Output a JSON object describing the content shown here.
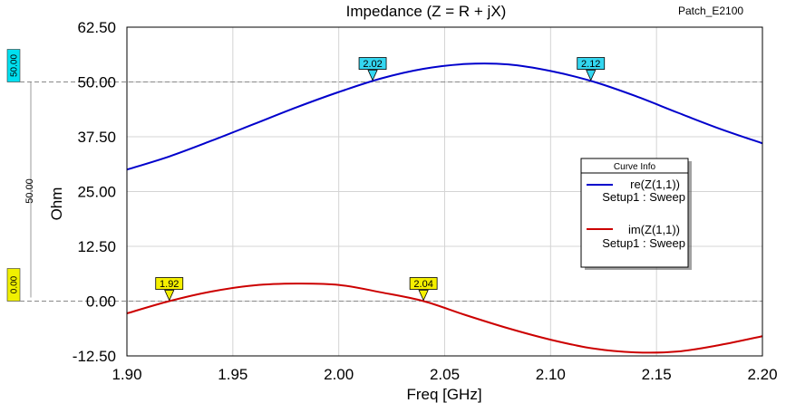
{
  "chart_data": {
    "type": "line",
    "title": "Impedance (Z = R + jX)",
    "project_label": "Patch_E2100",
    "xlabel": "Freq [GHz]",
    "ylabel": "Ohm",
    "xlim": [
      1.9,
      2.2
    ],
    "ylim": [
      -12.5,
      62.5
    ],
    "x_ticks": [
      "1.90",
      "1.95",
      "2.00",
      "2.05",
      "2.10",
      "2.15",
      "2.20"
    ],
    "y_ticks": [
      "-12.50",
      "0.00",
      "12.50",
      "25.00",
      "37.50",
      "50.00",
      "62.50"
    ],
    "grid": true,
    "legend": {
      "title": "Curve Info",
      "position": "right",
      "entries": [
        {
          "name": "re(Z(1,1))",
          "sub": "Setup1 : Sweep",
          "color": "#0000cc"
        },
        {
          "name": "im(Z(1,1))",
          "sub": "Setup1 : Sweep",
          "color": "#cc0000"
        }
      ]
    },
    "series": [
      {
        "name": "re(Z(1,1))",
        "color": "#0000cc",
        "x": [
          1.9,
          1.92,
          1.94,
          1.96,
          1.98,
          2.0,
          2.02,
          2.04,
          2.06,
          2.08,
          2.1,
          2.12,
          2.14,
          2.16,
          2.18,
          2.2
        ],
        "y": [
          30.0,
          33.0,
          36.6,
          40.4,
          44.2,
          47.7,
          50.8,
          53.0,
          54.1,
          54.0,
          52.5,
          50.1,
          46.8,
          43.0,
          39.3,
          36.0
        ]
      },
      {
        "name": "im(Z(1,1))",
        "color": "#cc0000",
        "x": [
          1.9,
          1.92,
          1.94,
          1.96,
          1.98,
          2.0,
          2.02,
          2.04,
          2.06,
          2.08,
          2.1,
          2.12,
          2.14,
          2.16,
          2.18,
          2.2
        ],
        "y": [
          -2.8,
          0.0,
          2.2,
          3.6,
          4.0,
          3.7,
          2.0,
          0.0,
          -3.2,
          -6.2,
          -8.8,
          -10.8,
          -11.7,
          -11.5,
          -10.0,
          -8.0
        ]
      }
    ],
    "reference_lines": [
      {
        "y": 50.0,
        "label": "50.00",
        "color": "#00e0f0"
      },
      {
        "y": 0.0,
        "label": "0.00",
        "color": "#f0f000"
      }
    ],
    "side_label": "50.00",
    "markers": [
      {
        "label": "2.02",
        "x": 2.016,
        "y": 50.2,
        "color": "#33d6f0"
      },
      {
        "label": "2.12",
        "x": 2.119,
        "y": 50.2,
        "color": "#33d6f0"
      },
      {
        "label": "1.92",
        "x": 1.92,
        "y": 0.0,
        "color": "#f5f000"
      },
      {
        "label": "2.04",
        "x": 2.04,
        "y": 0.0,
        "color": "#f5f000"
      }
    ]
  }
}
